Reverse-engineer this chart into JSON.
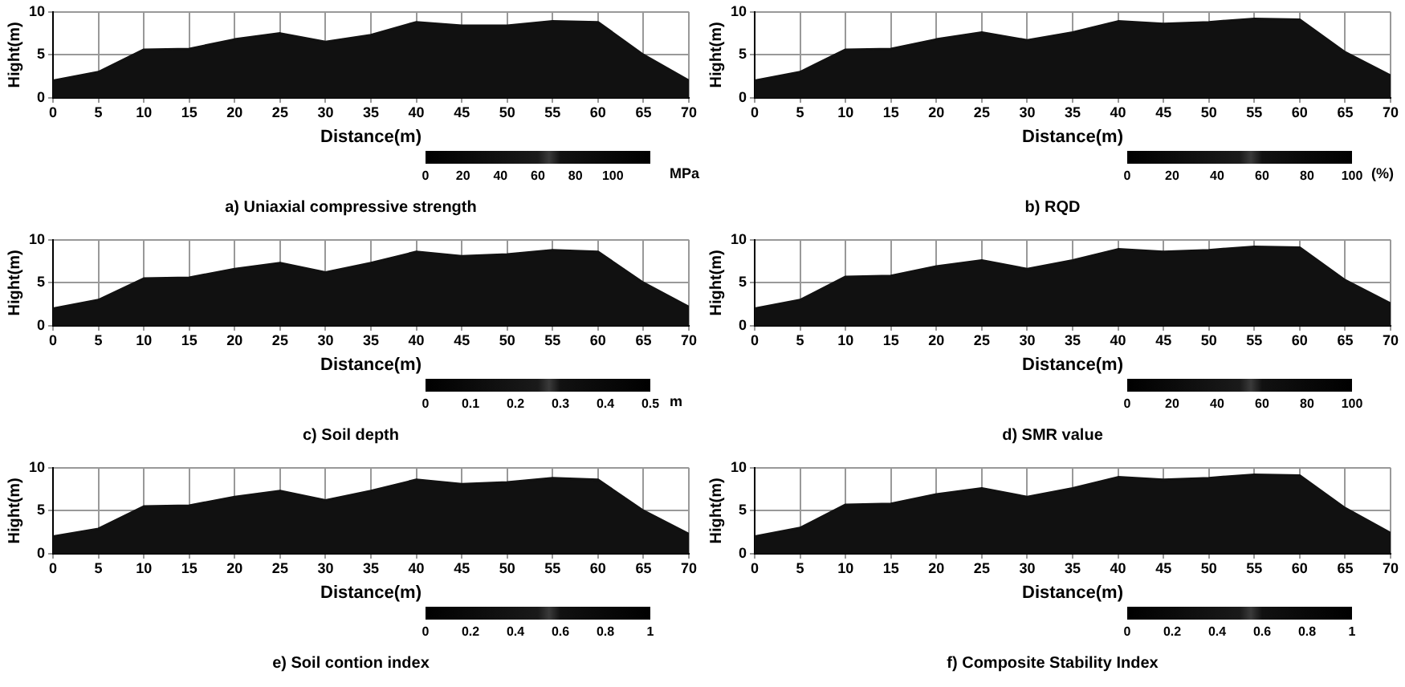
{
  "chart_data": [
    {
      "type": "area",
      "title": "a) Uniaxial compressive strength",
      "xlabel": "Distance(m)",
      "ylabel": "Hight(m)",
      "x": [
        0,
        5,
        10,
        15,
        20,
        25,
        30,
        35,
        40,
        45,
        50,
        55,
        60,
        65,
        70
      ],
      "values": [
        2,
        3,
        5.6,
        5.7,
        6.8,
        7.5,
        6.5,
        7.3,
        8.8,
        8.4,
        8.4,
        8.9,
        8.8,
        5,
        2
      ],
      "color": "#111111",
      "xlim": [
        0,
        70
      ],
      "xticks": [
        0,
        5,
        10,
        15,
        20,
        25,
        30,
        35,
        40,
        45,
        50,
        55,
        60,
        65,
        70
      ],
      "ylim": [
        0,
        10
      ],
      "yticks": [
        0,
        5,
        10
      ],
      "grid": true,
      "clim": [
        0,
        120
      ],
      "cticks": [
        0,
        20,
        40,
        60,
        80,
        100
      ],
      "clabel": "MPa"
    },
    {
      "type": "area",
      "title": "b) RQD",
      "xlabel": "Distance(m)",
      "ylabel": "Hight(m)",
      "x": [
        0,
        5,
        10,
        15,
        20,
        25,
        30,
        35,
        40,
        45,
        50,
        55,
        60,
        65,
        70
      ],
      "values": [
        2,
        3,
        5.6,
        5.7,
        6.8,
        7.6,
        6.7,
        7.6,
        8.9,
        8.6,
        8.8,
        9.2,
        9.1,
        5.3,
        2.6
      ],
      "color": "#111111",
      "xlim": [
        0,
        70
      ],
      "xticks": [
        0,
        5,
        10,
        15,
        20,
        25,
        30,
        35,
        40,
        45,
        50,
        55,
        60,
        65,
        70
      ],
      "ylim": [
        0,
        10
      ],
      "yticks": [
        0,
        5,
        10
      ],
      "grid": true,
      "clim": [
        0,
        100
      ],
      "cticks": [
        0,
        20,
        40,
        60,
        80,
        100
      ],
      "clabel": "(%)"
    },
    {
      "type": "area",
      "title": "c) Soil depth",
      "xlabel": "Distance(m)",
      "ylabel": "Hight(m)",
      "x": [
        0,
        5,
        10,
        15,
        20,
        25,
        30,
        35,
        40,
        45,
        50,
        55,
        60,
        65,
        70
      ],
      "values": [
        2,
        3,
        5.5,
        5.6,
        6.6,
        7.3,
        6.2,
        7.3,
        8.6,
        8.1,
        8.3,
        8.8,
        8.6,
        5,
        2.2
      ],
      "color": "#111111",
      "xlim": [
        0,
        70
      ],
      "xticks": [
        0,
        5,
        10,
        15,
        20,
        25,
        30,
        35,
        40,
        45,
        50,
        55,
        60,
        65,
        70
      ],
      "ylim": [
        0,
        10
      ],
      "yticks": [
        0,
        5,
        10
      ],
      "grid": true,
      "clim": [
        0,
        0.5
      ],
      "cticks": [
        0,
        0.1,
        0.2,
        0.3,
        0.4,
        0.5
      ],
      "clabel": "m"
    },
    {
      "type": "area",
      "title": "d) SMR value",
      "xlabel": "Distance(m)",
      "ylabel": "Hight(m)",
      "x": [
        0,
        5,
        10,
        15,
        20,
        25,
        30,
        35,
        40,
        45,
        50,
        55,
        60,
        65,
        70
      ],
      "values": [
        2,
        3,
        5.7,
        5.8,
        6.9,
        7.6,
        6.6,
        7.6,
        8.9,
        8.6,
        8.8,
        9.2,
        9.1,
        5.3,
        2.6
      ],
      "color": "#111111",
      "xlim": [
        0,
        70
      ],
      "xticks": [
        0,
        5,
        10,
        15,
        20,
        25,
        30,
        35,
        40,
        45,
        50,
        55,
        60,
        65,
        70
      ],
      "ylim": [
        0,
        10
      ],
      "yticks": [
        0,
        5,
        10
      ],
      "grid": true,
      "clim": [
        0,
        100
      ],
      "cticks": [
        0,
        20,
        40,
        60,
        80,
        100
      ]
    },
    {
      "type": "area",
      "title": "e) Soil contion index",
      "xlabel": "Distance(m)",
      "ylabel": "Hight(m)",
      "x": [
        0,
        5,
        10,
        15,
        20,
        25,
        30,
        35,
        40,
        45,
        50,
        55,
        60,
        65,
        70
      ],
      "values": [
        2,
        2.9,
        5.5,
        5.6,
        6.6,
        7.3,
        6.2,
        7.3,
        8.6,
        8.1,
        8.3,
        8.8,
        8.6,
        5,
        2.3
      ],
      "color": "#111111",
      "xlim": [
        0,
        70
      ],
      "xticks": [
        0,
        5,
        10,
        15,
        20,
        25,
        30,
        35,
        40,
        45,
        50,
        55,
        60,
        65,
        70
      ],
      "ylim": [
        0,
        10
      ],
      "yticks": [
        0,
        5,
        10
      ],
      "grid": true,
      "clim": [
        0,
        1
      ],
      "cticks": [
        0,
        0.2,
        0.4,
        0.6,
        0.8,
        1
      ]
    },
    {
      "type": "area",
      "title": "f) Composite Stability Index",
      "xlabel": "Distance(m)",
      "ylabel": "Hight(m)",
      "x": [
        0,
        5,
        10,
        15,
        20,
        25,
        30,
        35,
        40,
        45,
        50,
        55,
        60,
        65,
        70
      ],
      "values": [
        2,
        3,
        5.7,
        5.8,
        6.9,
        7.6,
        6.6,
        7.6,
        8.9,
        8.6,
        8.8,
        9.2,
        9.1,
        5.3,
        2.4
      ],
      "color": "#111111",
      "xlim": [
        0,
        70
      ],
      "xticks": [
        0,
        5,
        10,
        15,
        20,
        25,
        30,
        35,
        40,
        45,
        50,
        55,
        60,
        65,
        70
      ],
      "ylim": [
        0,
        10
      ],
      "yticks": [
        0,
        5,
        10
      ],
      "grid": true,
      "clim": [
        0,
        1
      ],
      "cticks": [
        0,
        0.2,
        0.4,
        0.6,
        0.8,
        1
      ]
    }
  ]
}
